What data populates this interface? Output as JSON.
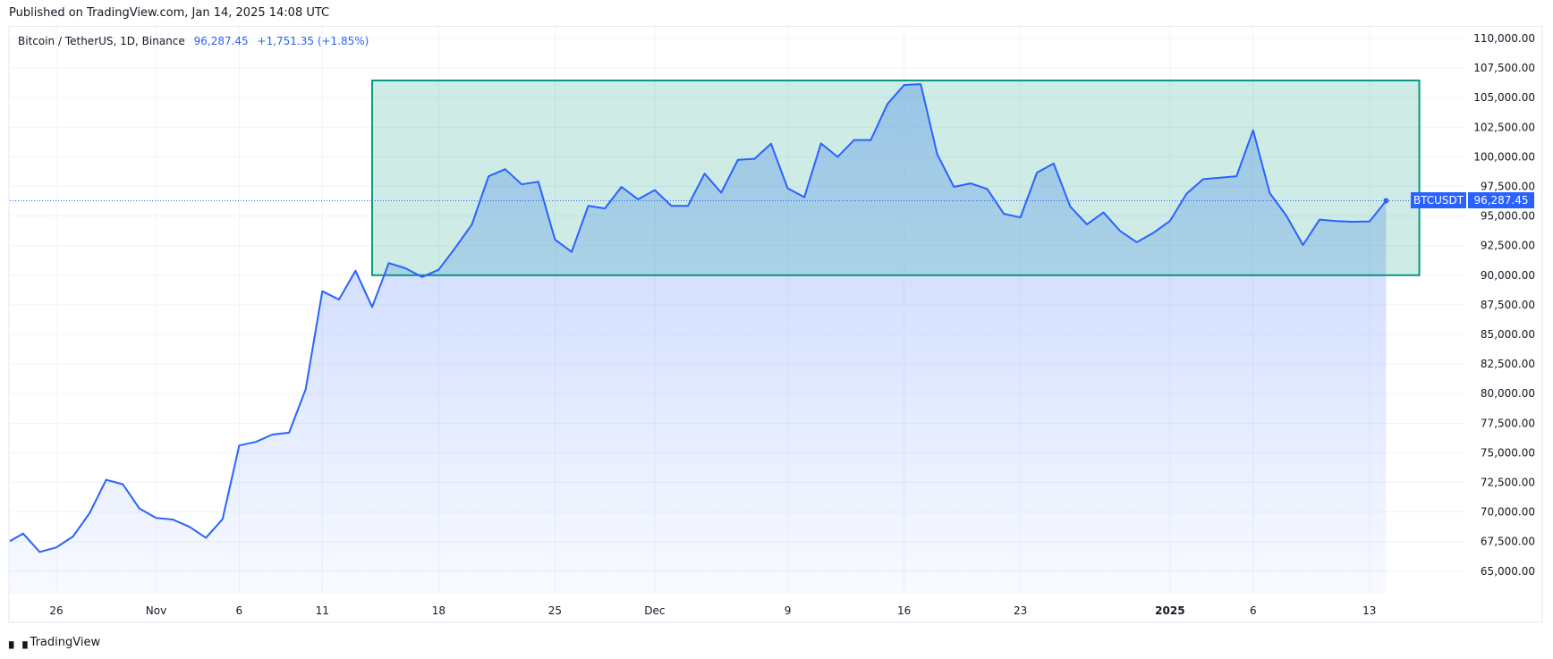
{
  "header": {
    "published": "Published on TradingView.com, Jan 14, 2025 14:08 UTC"
  },
  "legend": {
    "symbol": "Bitcoin / TetherUS, 1D, Binance",
    "last": "96,287.45",
    "change": "+1,751.35 (+1.85%)"
  },
  "price_label": {
    "ticker": "BTCUSDT",
    "value": "96,287.45"
  },
  "footer": {
    "brand": "TradingView",
    "logo": "TV"
  },
  "colors": {
    "line": "#2962ff",
    "rect_stroke": "#089981",
    "rect_fill": "#089981",
    "grid": "#f0f3fa"
  },
  "chart_data": {
    "type": "area",
    "title": "Bitcoin / TetherUS, 1D, Binance",
    "ylim": [
      63100,
      110980
    ],
    "y_ticks": [
      "65,000.00",
      "67,500.00",
      "70,000.00",
      "72,500.00",
      "75,000.00",
      "77,500.00",
      "80,000.00",
      "82,500.00",
      "85,000.00",
      "87,500.00",
      "90,000.00",
      "92,500.00",
      "95,000.00",
      "97,500.00",
      "100,000.00",
      "102,500.00",
      "105,000.00",
      "107,500.00",
      "110,000.00"
    ],
    "x_ticks": [
      {
        "date": "2024-10-26",
        "label": "26"
      },
      {
        "date": "2024-11-01",
        "label": "Nov"
      },
      {
        "date": "2024-11-06",
        "label": "6"
      },
      {
        "date": "2024-11-11",
        "label": "11"
      },
      {
        "date": "2024-11-18",
        "label": "18"
      },
      {
        "date": "2024-11-25",
        "label": "25"
      },
      {
        "date": "2024-12-01",
        "label": "Dec"
      },
      {
        "date": "2024-12-09",
        "label": "9"
      },
      {
        "date": "2024-12-16",
        "label": "16"
      },
      {
        "date": "2024-12-23",
        "label": "23"
      },
      {
        "date": "2025-01-01",
        "label": "2025"
      },
      {
        "date": "2025-01-06",
        "label": "6"
      },
      {
        "date": "2025-01-13",
        "label": "13"
      }
    ],
    "grid": true,
    "start_date": "2024-10-23",
    "values": [
      67380,
      68180,
      66630,
      67010,
      67930,
      69910,
      72720,
      72340,
      70290,
      69500,
      69370,
      68760,
      67830,
      69400,
      75620,
      75920,
      76540,
      76700,
      80370,
      88650,
      87950,
      90380,
      87320,
      91030,
      90590,
      89850,
      90460,
      92310,
      94290,
      98350,
      98960,
      97670,
      97900,
      93010,
      91970,
      95860,
      95640,
      97460,
      96410,
      97190,
      95860,
      95860,
      98580,
      96970,
      99740,
      99830,
      101110,
      97340,
      96590,
      101130,
      100000,
      101420,
      101420,
      104460,
      106060,
      106140,
      100200,
      97460,
      97760,
      97290,
      95190,
      94880,
      98670,
      99430,
      95790,
      94300,
      95300,
      93740,
      92790,
      93580,
      94590,
      96890,
      98110,
      98240,
      98360,
      102240,
      96950,
      95040,
      92550,
      94700,
      94570,
      94520,
      94540,
      96287.45
    ],
    "end_date": "2025-01-14",
    "annotation": {
      "type": "rectangle",
      "from_date": "2024-11-14",
      "to_date": "2025-01-16",
      "price_low": 90000,
      "price_high": 106450
    },
    "last_price": 96287.45
  }
}
